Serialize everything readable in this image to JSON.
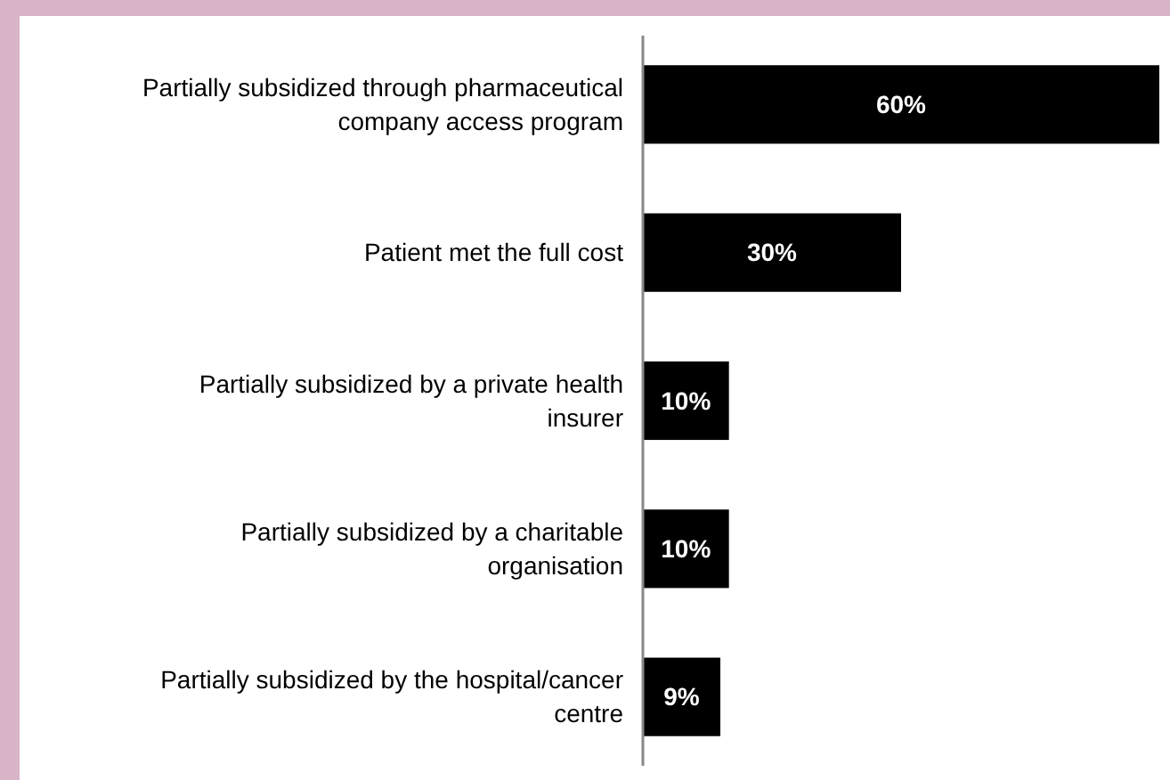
{
  "chart_data": {
    "type": "bar",
    "orientation": "horizontal",
    "categories": [
      "Partially subsidized through pharmaceutical company access program",
      "Patient met the full cost",
      "Partially subsidized by a private health insurer",
      "Partially subsidized by a charitable organisation",
      "Partially subsidized by the hospital/cancer centre"
    ],
    "values": [
      60,
      30,
      10,
      10,
      9
    ],
    "color": "#000000",
    "value_labels": [
      "60%",
      "30%",
      "10%",
      "10%",
      "9%"
    ]
  }
}
